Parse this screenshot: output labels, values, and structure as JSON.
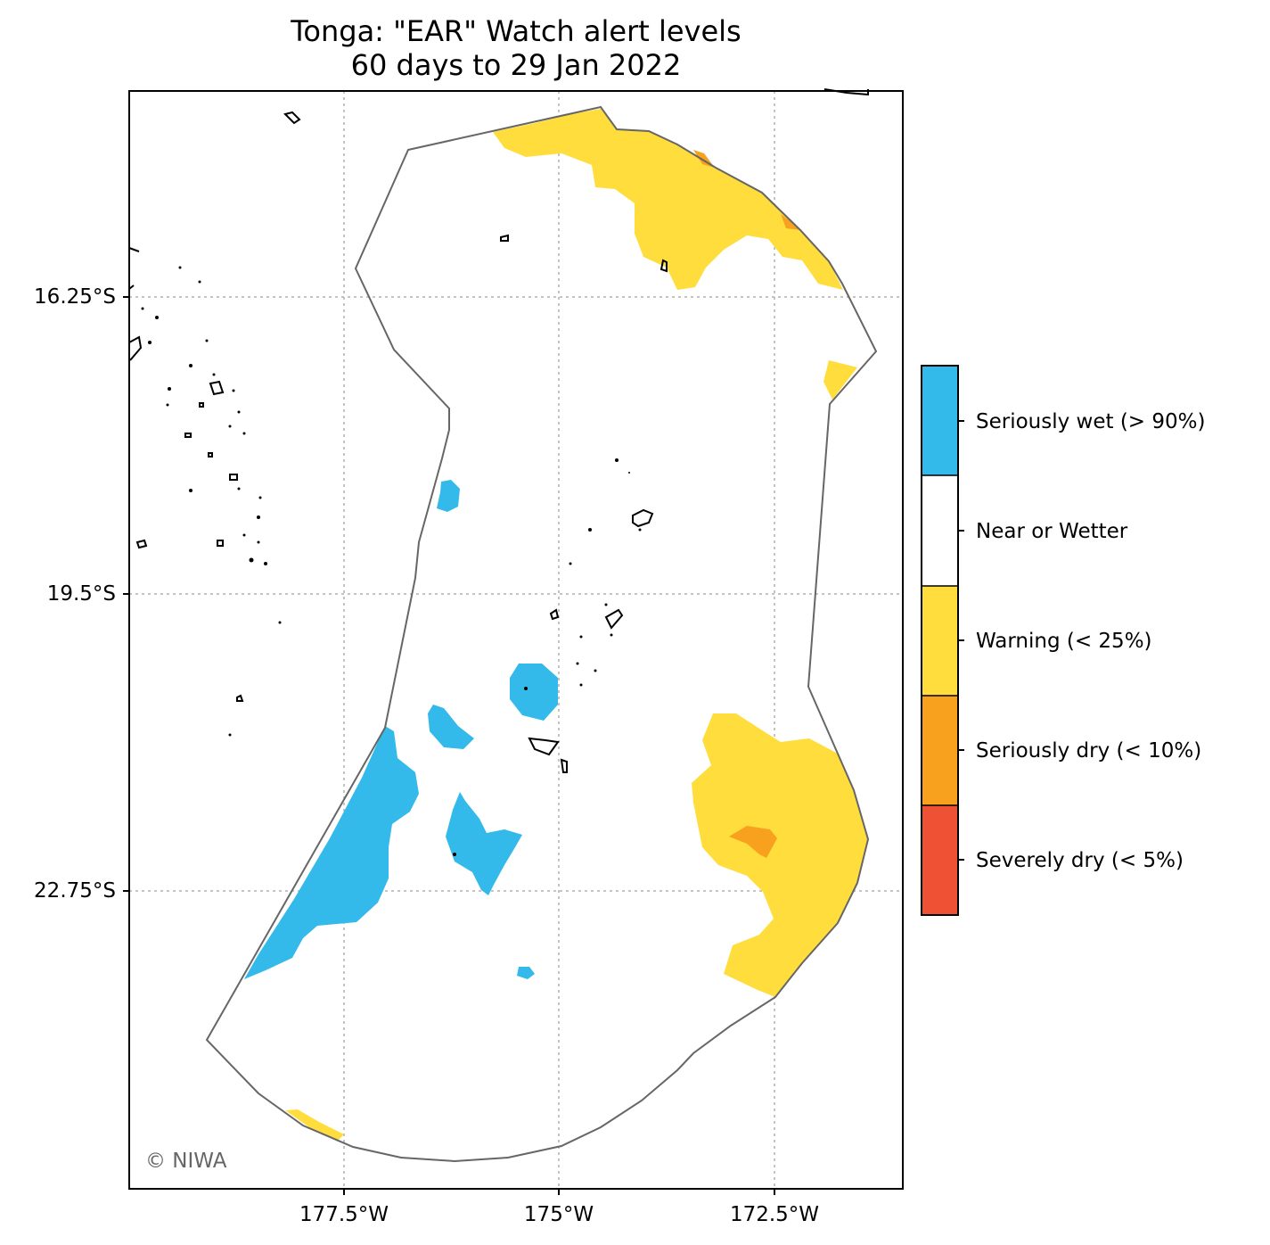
{
  "title": {
    "line1": "Tonga: \"EAR\" Watch alert levels",
    "line2": "60 days to 29 Jan 2022"
  },
  "axes": {
    "y_ticks": [
      "16.25°S",
      "19.5°S",
      "22.75°S"
    ],
    "x_ticks": [
      "177.5°W",
      "175°W",
      "172.5°W"
    ],
    "gridlines": "dotted"
  },
  "legend": {
    "placement": "right",
    "categories": [
      {
        "label": "Seriously wet (> 90%)",
        "color": "#33b9ea"
      },
      {
        "label": "Near or Wetter",
        "color": "#ffffff"
      },
      {
        "label": "Warning (< 25%)",
        "color": "#ffdd3c"
      },
      {
        "label": "Seriously dry (< 10%)",
        "color": "#f7a11f"
      },
      {
        "label": "Severely dry (< 5%)",
        "color": "#ef5135"
      }
    ]
  },
  "colors": {
    "boundary": "#666666",
    "coastline": "#000000",
    "grid": "#b0b0b0"
  },
  "credit": "© NIWA"
}
